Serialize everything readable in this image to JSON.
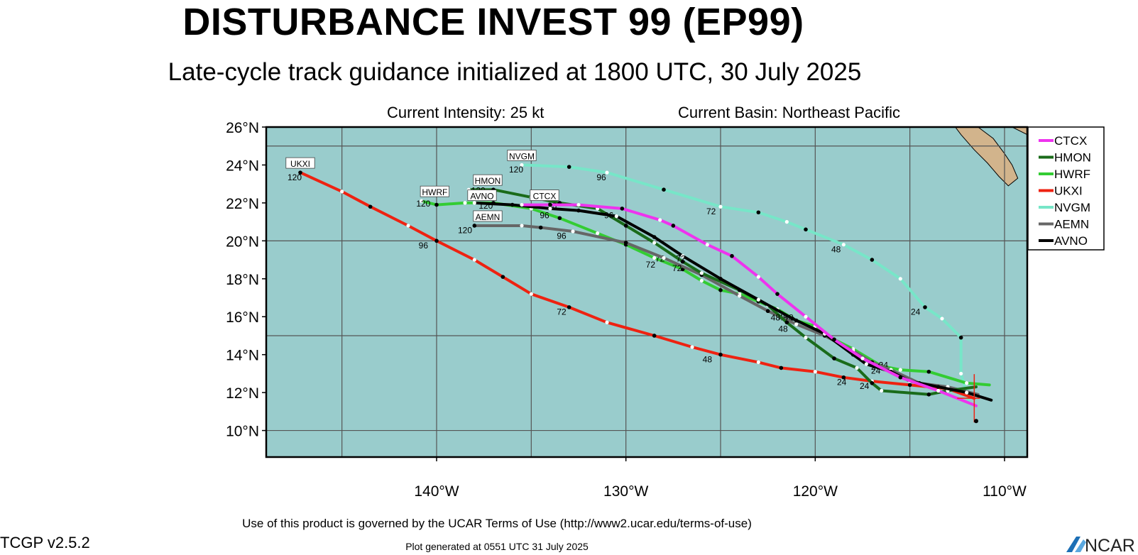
{
  "header": {
    "title": "DISTURBANCE INVEST 99 (EP99)",
    "subtitle": "Late-cycle track guidance initialized at 1800 UTC, 30 July 2025",
    "intensity": "Current Intensity: 25 kt",
    "basin": "Current Basin: Northeast Pacific"
  },
  "footer": {
    "terms": "Use of this product is governed by the UCAR Terms of Use (http://www2.ucar.edu/terms-of-use)",
    "version": "TCGP v2.5.2",
    "generated": "Plot generated at 0551 UTC   31 July 2025",
    "logo": "NCAR"
  },
  "colors": {
    "ocean": "#99cccc",
    "land": "#d2b48c",
    "grid": "#555555"
  },
  "map": {
    "lon_range": [
      -149,
      -108.8
    ],
    "lat_range": [
      8.6,
      26
    ],
    "lat_ticks": [
      10,
      12,
      14,
      16,
      18,
      20,
      22,
      24,
      26
    ],
    "lat_labels": [
      "10°N",
      "12°N",
      "14°N",
      "16°N",
      "18°N",
      "20°N",
      "22°N",
      "24°N",
      "26°N"
    ],
    "lon_ticks": [
      -140,
      -130,
      -120,
      -110
    ],
    "lon_labels": [
      "140°W",
      "130°W",
      "120°W",
      "110°W"
    ],
    "grid_lons": [
      -145,
      -140,
      -135,
      -130,
      -125,
      -120,
      -115,
      -110
    ],
    "grid_lats": [
      10,
      15,
      20,
      25
    ]
  },
  "chart_data": {
    "type": "map-tracks",
    "legend": [
      {
        "name": "CTCX",
        "color": "#ee33ee"
      },
      {
        "name": "HMON",
        "color": "#1a6b1a"
      },
      {
        "name": "HWRF",
        "color": "#33cc33"
      },
      {
        "name": "UKXI",
        "color": "#ee2211"
      },
      {
        "name": "NVGM",
        "color": "#77e6c8"
      },
      {
        "name": "AEMN",
        "color": "#666666"
      },
      {
        "name": "AVNO",
        "color": "#000000"
      }
    ],
    "tracks": [
      {
        "name": "CTCX",
        "color": "#ee33ee",
        "points": [
          [
            -111.5,
            11.3
          ],
          [
            -113.5,
            12.1
          ],
          [
            -115.5,
            12.8
          ],
          [
            -117.5,
            13.8
          ],
          [
            -119,
            14.8
          ],
          [
            -120.5,
            16.0
          ],
          [
            -122,
            17.2
          ],
          [
            -123,
            18.1
          ],
          [
            -124.4,
            19.2
          ],
          [
            -125.7,
            19.8
          ],
          [
            -127.5,
            20.8
          ],
          [
            -128.2,
            21.1
          ],
          [
            -130.2,
            21.7
          ],
          [
            -132.5,
            21.9
          ],
          [
            -134,
            21.9
          ],
          [
            -135.5,
            21.9
          ]
        ],
        "labels": []
      },
      {
        "name": "HMON",
        "color": "#1a6b1a",
        "points": [
          [
            -111.5,
            12.3
          ],
          [
            -113,
            12.1
          ],
          [
            -114,
            11.9
          ],
          [
            -116.5,
            12.1
          ],
          [
            -117,
            12.5
          ],
          [
            -117.8,
            13.3
          ],
          [
            -119,
            13.8
          ],
          [
            -120.5,
            14.9
          ],
          [
            -121.5,
            15.7
          ],
          [
            -122.5,
            16.6
          ],
          [
            -124,
            17.4
          ],
          [
            -126,
            18.3
          ],
          [
            -127,
            18.9
          ],
          [
            -128.5,
            19.9
          ],
          [
            -130,
            20.8
          ],
          [
            -131.5,
            21.7
          ],
          [
            -133.5,
            22
          ],
          [
            -135,
            22.3
          ],
          [
            -137,
            22.7
          ],
          [
            -138.3,
            22.7
          ]
        ],
        "labels": [
          {
            "text": "24",
            "lon": -117.4,
            "lat": 12.2
          },
          {
            "text": "48",
            "lon": -121.7,
            "lat": 15.2
          },
          {
            "text": "72",
            "lon": -127.3,
            "lat": 18.4
          },
          {
            "text": "96",
            "lon": -133.9,
            "lat": 21.7
          },
          {
            "text": "120",
            "lon": -137.8,
            "lat": 22.5
          }
        ]
      },
      {
        "name": "HWRF",
        "color": "#33cc33",
        "points": [
          [
            -110.8,
            12.4
          ],
          [
            -112,
            12.5
          ],
          [
            -114,
            13.1
          ],
          [
            -115.5,
            13.2
          ],
          [
            -116.5,
            13.4
          ],
          [
            -118,
            14.3
          ],
          [
            -119,
            14.8
          ],
          [
            -120,
            15.5
          ],
          [
            -121,
            15.8
          ],
          [
            -122,
            16.4
          ],
          [
            -123,
            16.8
          ],
          [
            -124,
            17.2
          ],
          [
            -125,
            17.4
          ],
          [
            -126,
            17.9
          ],
          [
            -127,
            18.5
          ],
          [
            -128.5,
            19.1
          ],
          [
            -130,
            19.8
          ],
          [
            -131.5,
            20.4
          ],
          [
            -133.5,
            21.2
          ],
          [
            -135,
            21.7
          ],
          [
            -137,
            22.0
          ],
          [
            -138.5,
            22.0
          ],
          [
            -140,
            21.9
          ],
          [
            -140.8,
            22.1
          ]
        ],
        "labels": [
          {
            "text": "24",
            "lon": -116.4,
            "lat": 13.3
          },
          {
            "text": "48",
            "lon": -121.4,
            "lat": 15.8
          },
          {
            "text": "72",
            "lon": -128.2,
            "lat": 18.9
          },
          {
            "text": "96",
            "lon": -134.3,
            "lat": 21.2
          },
          {
            "text": "120",
            "lon": -140.7,
            "lat": 21.8
          }
        ]
      },
      {
        "name": "UKXI",
        "color": "#ee2211",
        "points": [
          [
            -111.6,
            11.7
          ],
          [
            -113,
            12.2
          ],
          [
            -115,
            12.4
          ],
          [
            -117,
            12.6
          ],
          [
            -118.5,
            12.8
          ],
          [
            -120,
            13.1
          ],
          [
            -121.8,
            13.3
          ],
          [
            -123,
            13.6
          ],
          [
            -125,
            14.0
          ],
          [
            -126.5,
            14.4
          ],
          [
            -128.5,
            15.0
          ],
          [
            -131,
            15.7
          ],
          [
            -133,
            16.5
          ],
          [
            -135,
            17.2
          ],
          [
            -136.5,
            18.1
          ],
          [
            -138,
            19.0
          ],
          [
            -140,
            20.0
          ],
          [
            -141.5,
            20.8
          ],
          [
            -143.5,
            21.8
          ],
          [
            -145,
            22.6
          ],
          [
            -147.2,
            23.6
          ]
        ],
        "labels": [
          {
            "text": "24",
            "lon": -118.6,
            "lat": 12.4
          },
          {
            "text": "48",
            "lon": -125.7,
            "lat": 13.6
          },
          {
            "text": "72",
            "lon": -133.4,
            "lat": 16.1
          },
          {
            "text": "96",
            "lon": -140.7,
            "lat": 19.6
          },
          {
            "text": "120",
            "lon": -147.5,
            "lat": 23.2
          }
        ]
      },
      {
        "name": "NVGM",
        "color": "#77e6c8",
        "points": [
          [
            -111.9,
            11.6
          ],
          [
            -112.3,
            13.0
          ],
          [
            -112.3,
            14.9
          ],
          [
            -113.3,
            15.9
          ],
          [
            -114.2,
            16.5
          ],
          [
            -115.5,
            18.0
          ],
          [
            -117,
            19.0
          ],
          [
            -118.5,
            19.8
          ],
          [
            -120.5,
            20.6
          ],
          [
            -121.5,
            21.0
          ],
          [
            -123,
            21.5
          ],
          [
            -125,
            21.8
          ],
          [
            -128,
            22.7
          ],
          [
            -131,
            23.6
          ],
          [
            -133,
            23.9
          ],
          [
            -135.5,
            24.0
          ]
        ],
        "labels": [
          {
            "text": "24",
            "lon": -114.7,
            "lat": 16.1
          },
          {
            "text": "48",
            "lon": -118.9,
            "lat": 19.4
          },
          {
            "text": "72",
            "lon": -125.5,
            "lat": 21.4
          },
          {
            "text": "96",
            "lon": -131.3,
            "lat": 23.2
          },
          {
            "text": "120",
            "lon": -135.8,
            "lat": 23.6
          }
        ]
      },
      {
        "name": "AEMN",
        "color": "#666666",
        "points": [
          [
            -111.4,
            11.9
          ],
          [
            -113,
            12.3
          ],
          [
            -114.5,
            12.5
          ],
          [
            -116,
            13.2
          ],
          [
            -117,
            13.6
          ],
          [
            -118,
            14.2
          ],
          [
            -119.5,
            15.0
          ],
          [
            -121,
            15.6
          ],
          [
            -122.5,
            16.3
          ],
          [
            -124,
            17.1
          ],
          [
            -126,
            18.2
          ],
          [
            -128,
            19.1
          ],
          [
            -130,
            19.9
          ],
          [
            -132.8,
            20.5
          ],
          [
            -134.5,
            20.7
          ],
          [
            -135.5,
            20.8
          ],
          [
            -138,
            20.8
          ]
        ],
        "labels": [
          {
            "text": "24",
            "lon": -116.8,
            "lat": 13.2
          },
          {
            "text": "48",
            "lon": -121.7,
            "lat": 15.8
          },
          {
            "text": "72",
            "lon": -128.7,
            "lat": 18.6
          },
          {
            "text": "96",
            "lon": -133.4,
            "lat": 20.1
          },
          {
            "text": "120",
            "lon": -138.5,
            "lat": 20.4
          }
        ]
      },
      {
        "name": "AVNO",
        "color": "#000000",
        "points": [
          [
            -110.7,
            11.6
          ],
          [
            -112,
            12.0
          ],
          [
            -113.5,
            12.3
          ],
          [
            -115,
            12.6
          ],
          [
            -116,
            13.1
          ],
          [
            -117.3,
            13.5
          ],
          [
            -118,
            14.0
          ],
          [
            -119.5,
            15.1
          ],
          [
            -121.2,
            15.9
          ],
          [
            -123,
            16.9
          ],
          [
            -125,
            18.0
          ],
          [
            -127,
            19.2
          ],
          [
            -128.5,
            20.2
          ],
          [
            -130.5,
            21.3
          ],
          [
            -132.5,
            21.6
          ],
          [
            -134,
            21.7
          ],
          [
            -136,
            21.9
          ],
          [
            -138,
            22.0
          ]
        ],
        "labels": [
          {
            "text": "24",
            "lon": -116.8,
            "lat": 13.0
          },
          {
            "text": "48",
            "lon": -122.1,
            "lat": 15.8
          },
          {
            "text": "72",
            "lon": -127.1,
            "lat": 18.9
          },
          {
            "text": "96",
            "lon": -130.9,
            "lat": 21.2
          },
          {
            "text": "120",
            "lon": -137.4,
            "lat": 21.7
          }
        ]
      }
    ],
    "model_labels": [
      {
        "name": "UKXI",
        "lon": -147.2,
        "lat": 23.9
      },
      {
        "name": "NVGM",
        "lon": -135.5,
        "lat": 24.3
      },
      {
        "name": "HMON",
        "lon": -137.3,
        "lat": 23.0
      },
      {
        "name": "HWRF",
        "lon": -140.1,
        "lat": 22.4
      },
      {
        "name": "AVNO",
        "lon": -137.6,
        "lat": 22.2
      },
      {
        "name": "CTCX",
        "lon": -134.3,
        "lat": 22.2
      },
      {
        "name": "AEMN",
        "lon": -137.3,
        "lat": 21.1
      }
    ]
  }
}
